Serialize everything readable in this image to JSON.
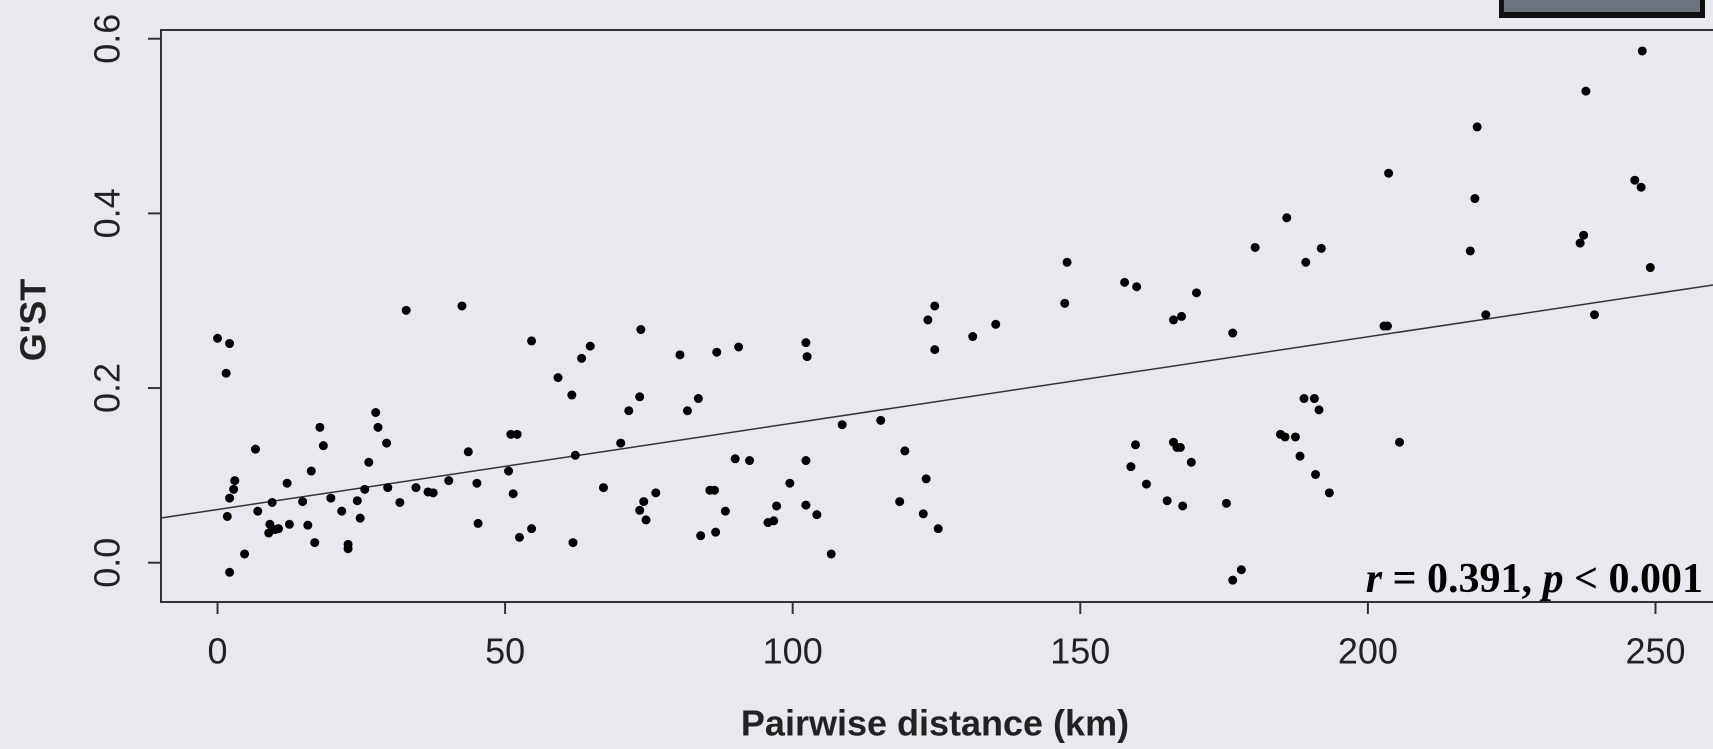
{
  "chart_data": {
    "type": "scatter",
    "x_label": "Pairwise distance (km)",
    "y_label": "G'ST",
    "color": "#000000",
    "xlim": [
      -10,
      260
    ],
    "ylim": [
      -0.045,
      0.61
    ],
    "xticks": [
      0,
      50,
      100,
      150,
      200,
      250
    ],
    "yticks": [
      {
        "value": 0,
        "label": "0.0"
      },
      {
        "value": 0.2,
        "label": "0.2"
      },
      {
        "value": 0.4,
        "label": "0.4"
      },
      {
        "value": 0.6,
        "label": "0.6"
      }
    ],
    "x": [
      0,
      2.1,
      1.5,
      1.7,
      2.1,
      3,
      2.8,
      2.1,
      4.7,
      6.6,
      7,
      9.1,
      8.9,
      9.5,
      10,
      10.6,
      12.1,
      12.5,
      14.8,
      15.7,
      16.3,
      16.9,
      17.8,
      18.4,
      19.7,
      21.6,
      22.7,
      22.7,
      24.3,
      24.8,
      25.6,
      26.3,
      27.5,
      27.9,
      29.4,
      29.6,
      31.7,
      32.8,
      34.5,
      36.6,
      37.5,
      40.2,
      42.5,
      43.6,
      45.1,
      45.3,
      50.6,
      51,
      51.4,
      52.1,
      52.5,
      54.6,
      54.6,
      59.2,
      61.6,
      61.8,
      62.2,
      63.3,
      64.8,
      67.1,
      70.1,
      71.5,
      73.4,
      73.4,
      73.6,
      74.5,
      74.1,
      76.2,
      80.4,
      81.7,
      83.6,
      84,
      85.6,
      86.4,
      86.6,
      86.8,
      88.3,
      90,
      90.6,
      92.5,
      95.7,
      96.7,
      97.2,
      99.5,
      102.3,
      102.5,
      102.3,
      102.3,
      104.2,
      106.7,
      108.6,
      115.3,
      118.6,
      119.5,
      122.7,
      123.2,
      123.5,
      124.7,
      124.7,
      125.3,
      131.3,
      135.3,
      147.3,
      147.7,
      157.7,
      158.8,
      159.6,
      159.8,
      161.5,
      165.1,
      166.2,
      166.2,
      166.8,
      167.6,
      167.4,
      167.8,
      169.3,
      170.2,
      175.4,
      176.5,
      176.5,
      178,
      180.4,
      184.8,
      185.6,
      185.9,
      187.4,
      188.2,
      188.9,
      189.2,
      190.7,
      190.9,
      191.5,
      191.9,
      193.3,
      202.8,
      203.4,
      203.6,
      205.5,
      217.8,
      218.6,
      219,
      220.5,
      236.9,
      237.5,
      237.9,
      239.4,
      246.4,
      247.5,
      247.7,
      249.1
    ],
    "values": [
      0.257,
      0.251,
      0.217,
      0.053,
      0.074,
      0.094,
      0.084,
      -0.011,
      0.01,
      0.13,
      0.059,
      0.044,
      0.034,
      0.069,
      0.038,
      0.039,
      0.091,
      0.044,
      0.07,
      0.043,
      0.105,
      0.023,
      0.155,
      0.134,
      0.074,
      0.059,
      0.021,
      0.016,
      0.071,
      0.051,
      0.084,
      0.115,
      0.172,
      0.155,
      0.137,
      0.086,
      0.069,
      0.289,
      0.086,
      0.081,
      0.08,
      0.094,
      0.294,
      0.127,
      0.091,
      0.045,
      0.105,
      0.147,
      0.079,
      0.147,
      0.029,
      0.254,
      0.039,
      0.212,
      0.192,
      0.023,
      0.123,
      0.234,
      0.248,
      0.086,
      0.137,
      0.174,
      0.06,
      0.19,
      0.267,
      0.049,
      0.07,
      0.08,
      0.238,
      0.174,
      0.188,
      0.031,
      0.083,
      0.083,
      0.035,
      0.241,
      0.059,
      0.119,
      0.247,
      0.117,
      0.046,
      0.048,
      0.065,
      0.091,
      0.252,
      0.236,
      0.117,
      0.066,
      0.055,
      0.01,
      0.158,
      0.163,
      0.07,
      0.128,
      0.056,
      0.096,
      0.278,
      0.294,
      0.244,
      0.039,
      0.259,
      0.273,
      0.297,
      0.344,
      0.321,
      0.11,
      0.135,
      0.316,
      0.09,
      0.071,
      0.278,
      0.138,
      0.132,
      0.282,
      0.132,
      0.065,
      0.115,
      0.309,
      0.068,
      0.263,
      -0.02,
      -0.008,
      0.361,
      0.147,
      0.144,
      0.395,
      0.144,
      0.122,
      0.188,
      0.344,
      0.188,
      0.101,
      0.175,
      0.36,
      0.08,
      0.271,
      0.271,
      0.446,
      0.138,
      0.357,
      0.417,
      0.499,
      0.284,
      0.366,
      0.375,
      0.54,
      0.284,
      0.438,
      0.43,
      0.586,
      0.338
    ],
    "fit": {
      "x": [
        -10,
        260
      ],
      "y": [
        0.051,
        0.318
      ]
    },
    "annotation": [
      "r",
      " = 0.391, ",
      "p",
      " < 0.001"
    ]
  }
}
